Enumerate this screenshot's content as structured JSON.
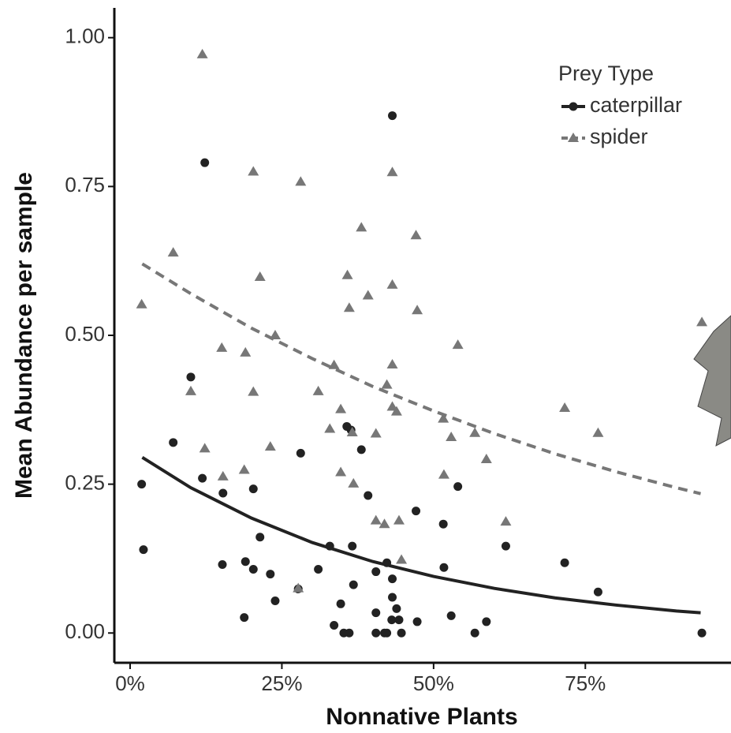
{
  "chart_data": {
    "type": "scatter",
    "xlabel": "Nonnative Plants",
    "ylabel": "Mean Abundance per sample",
    "legend_title": "Prey Type",
    "legend": "top-right",
    "xlim": [
      -2.6,
      99
    ],
    "ylim": [
      -0.05,
      1.05
    ],
    "xticks": [
      {
        "value": 0,
        "label": "0%"
      },
      {
        "value": 25,
        "label": "25%"
      },
      {
        "value": 50,
        "label": "50%"
      },
      {
        "value": 75,
        "label": "75%"
      }
    ],
    "yticks": [
      {
        "value": 0,
        "label": "0.00"
      },
      {
        "value": 0.25,
        "label": "0.25"
      },
      {
        "value": 0.5,
        "label": "0.50"
      },
      {
        "value": 0.75,
        "label": "0.75"
      },
      {
        "value": 1,
        "label": "1.00"
      }
    ],
    "series": [
      {
        "name": "caterpillar",
        "color": "#222222",
        "marker": "circle",
        "dash": false,
        "x": [
          1.9,
          2.2,
          7.1,
          10.0,
          12.3,
          11.9,
          15.2,
          15.3,
          19.0,
          18.8,
          20.3,
          20.3,
          21.4,
          23.1,
          23.9,
          27.7,
          28.1,
          31.0,
          32.9,
          33.6,
          34.7,
          35.2,
          36.1,
          35.7,
          36.4,
          36.6,
          36.8,
          38.1,
          39.2,
          40.5,
          40.5,
          40.5,
          41.9,
          42.3,
          42.3,
          43.2,
          43.2,
          43.2,
          43.1,
          43.9,
          44.7,
          44.3,
          47.1,
          47.3,
          51.6,
          51.7,
          52.9,
          54.0,
          56.8,
          58.7,
          61.9,
          71.6,
          77.1,
          94.2
        ],
        "values": [
          0.25,
          0.14,
          0.32,
          0.43,
          0.79,
          0.26,
          0.115,
          0.235,
          0.12,
          0.026,
          0.107,
          0.242,
          0.161,
          0.099,
          0.054,
          0.074,
          0.302,
          0.107,
          0.146,
          0.013,
          0.049,
          0,
          0,
          0.347,
          0.341,
          0.146,
          0.081,
          0.308,
          0.231,
          0,
          0.034,
          0.103,
          0,
          0,
          0.118,
          0.869,
          0.091,
          0.06,
          0.022,
          0.041,
          0,
          0.022,
          0.205,
          0.019,
          0.183,
          0.11,
          0.029,
          0.246,
          0,
          0.019,
          0.146,
          0.118,
          0.069,
          0
        ],
        "fit": {
          "x": [
            2,
            10,
            20,
            30,
            40,
            50,
            60,
            70,
            80,
            90,
            94
          ],
          "values": [
            0.295,
            0.244,
            0.193,
            0.152,
            0.12,
            0.095,
            0.075,
            0.059,
            0.047,
            0.037,
            0.034
          ]
        }
      },
      {
        "name": "spider",
        "color": "#777777",
        "marker": "triangle",
        "dash": true,
        "x": [
          1.9,
          7.1,
          10.0,
          11.9,
          12.3,
          15.1,
          15.3,
          19.0,
          18.8,
          20.3,
          20.3,
          21.4,
          23.1,
          23.9,
          27.7,
          28.1,
          31.0,
          32.9,
          33.6,
          34.7,
          34.7,
          35.8,
          36.1,
          36.6,
          36.8,
          38.1,
          39.2,
          40.5,
          40.5,
          41.9,
          42.3,
          43.2,
          43.2,
          43.2,
          43.2,
          43.9,
          44.3,
          44.7,
          47.1,
          47.3,
          51.6,
          51.7,
          52.9,
          54.0,
          56.8,
          58.7,
          61.9,
          71.6,
          77.1,
          94.2
        ],
        "values": [
          0.552,
          0.639,
          0.406,
          0.972,
          0.31,
          0.479,
          0.263,
          0.471,
          0.274,
          0.775,
          0.405,
          0.598,
          0.313,
          0.5,
          0.075,
          0.758,
          0.406,
          0.343,
          0.45,
          0.376,
          0.27,
          0.601,
          0.546,
          0.337,
          0.251,
          0.681,
          0.567,
          0.335,
          0.189,
          0.183,
          0.417,
          0.774,
          0.585,
          0.451,
          0.38,
          0.372,
          0.189,
          0.123,
          0.668,
          0.542,
          0.36,
          0.266,
          0.329,
          0.484,
          0.336,
          0.292,
          0.187,
          0.378,
          0.336,
          0.522
        ],
        "fit": {
          "x": [
            2,
            10,
            20,
            30,
            40,
            50,
            60,
            70,
            80,
            90,
            94
          ],
          "values": [
            0.62,
            0.57,
            0.512,
            0.461,
            0.414,
            0.373,
            0.335,
            0.301,
            0.271,
            0.244,
            0.234
          ]
        }
      }
    ]
  }
}
